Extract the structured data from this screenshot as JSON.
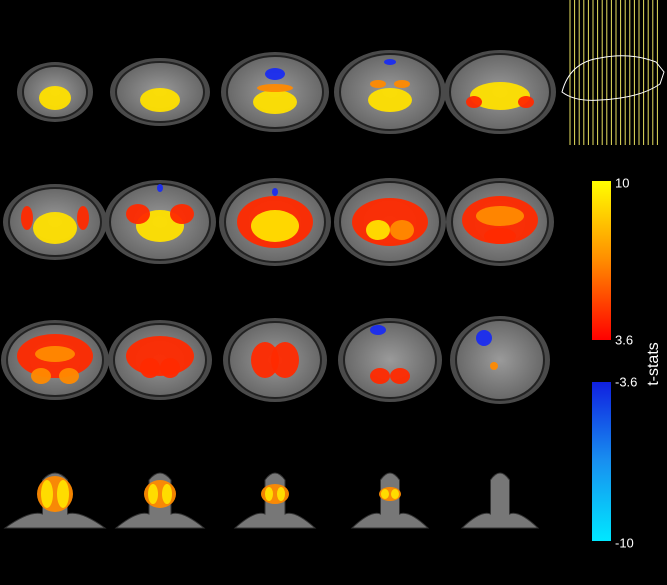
{
  "colorbar": {
    "label": "t-stats",
    "positive": {
      "max": 10,
      "min": 3.6
    },
    "negative": {
      "max": -3.6,
      "min": -10
    }
  }
}
